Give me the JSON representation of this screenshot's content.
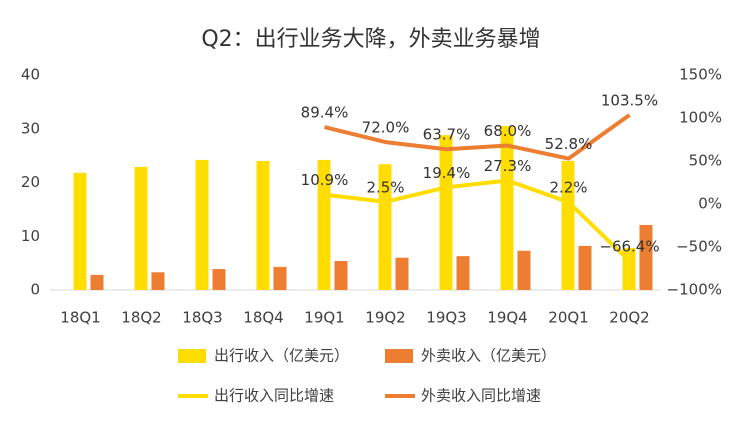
{
  "chart_data": {
    "type": "bar_line",
    "title": "Q2：出行业务大降，外卖业务暴增",
    "categories": [
      "18Q1",
      "18Q2",
      "18Q3",
      "18Q4",
      "19Q1",
      "19Q2",
      "19Q3",
      "19Q4",
      "20Q1",
      "20Q2"
    ],
    "series": [
      {
        "name": "出行收入（亿美元）",
        "type": "bar",
        "color": "#FFDD00",
        "values": [
          21.8,
          22.9,
          24.2,
          24.0,
          24.2,
          23.4,
          28.8,
          30.5,
          24.0,
          7.8
        ]
      },
      {
        "name": "外卖收入（亿美元）",
        "type": "bar",
        "color": "#ED7D31",
        "values": [
          2.8,
          3.3,
          3.9,
          4.3,
          5.4,
          6.0,
          6.3,
          7.3,
          8.2,
          12.1
        ]
      },
      {
        "name": "出行收入同比增速",
        "type": "line",
        "axis": "y2",
        "color": "#FFDD00",
        "values": [
          null,
          null,
          null,
          null,
          10.9,
          2.5,
          19.4,
          27.3,
          2.2,
          -66.4
        ],
        "value_labels": [
          null,
          null,
          null,
          null,
          "10.9%",
          "2.5%",
          "19.4%",
          "27.3%",
          "2.2%",
          "−66.4%"
        ]
      },
      {
        "name": "外卖收入同比增速",
        "type": "line",
        "axis": "y2",
        "color": "#ED7D31",
        "values": [
          null,
          null,
          null,
          null,
          89.4,
          72.0,
          63.7,
          68.0,
          52.8,
          103.5
        ],
        "value_labels": [
          null,
          null,
          null,
          null,
          "89.4%",
          "72.0%",
          "63.7%",
          "68.0%",
          "52.8%",
          "103.5%"
        ]
      }
    ],
    "ylim": [
      0,
      40
    ],
    "yticks": [
      0,
      10,
      20,
      30,
      40
    ],
    "y2lim": [
      -100,
      150
    ],
    "y2ticks": [
      {
        "value": -100,
        "label": "−100%"
      },
      {
        "value": -50,
        "label": "−50%"
      },
      {
        "value": 0,
        "label": "0%"
      },
      {
        "value": 50,
        "label": "50%"
      },
      {
        "value": 100,
        "label": "100%"
      },
      {
        "value": 150,
        "label": "150%"
      }
    ]
  }
}
